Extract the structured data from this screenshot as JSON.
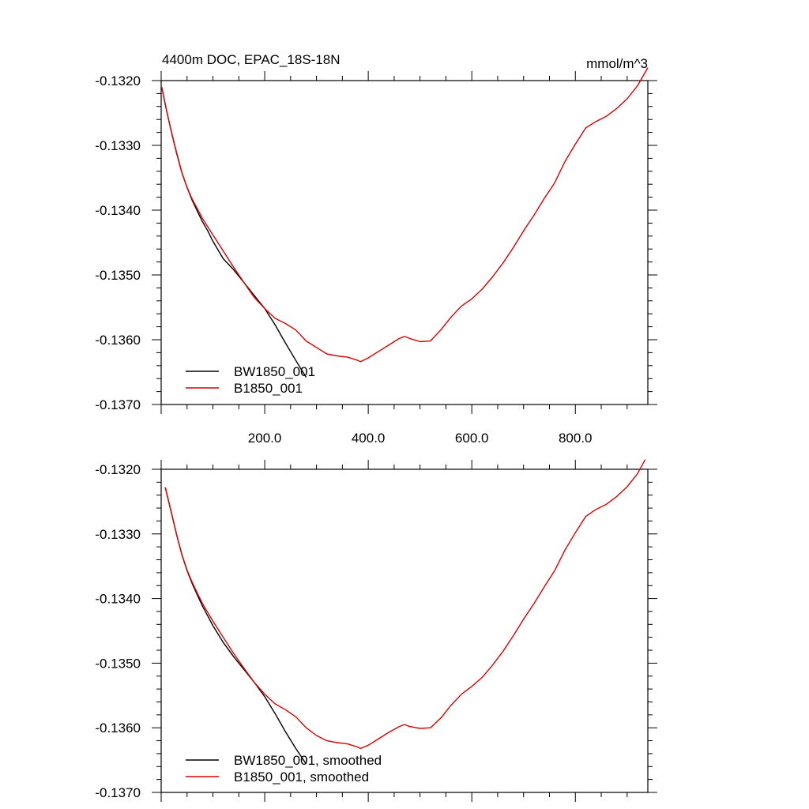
{
  "chart_data": [
    {
      "type": "line",
      "title": "4400m DOC, EPAC_18S-18N",
      "units": "mmol/m^3",
      "xlim": [
        0,
        940
      ],
      "ylim": [
        -0.137,
        -0.132
      ],
      "xticks": [
        200,
        400,
        600,
        800
      ],
      "xtick_labels": [
        "200.0",
        "400.0",
        "600.0",
        "800.0"
      ],
      "yticks": [
        -0.132,
        -0.133,
        -0.134,
        -0.135,
        -0.136,
        -0.137
      ],
      "ytick_labels": [
        "-0.1320",
        "-0.1330",
        "-0.1340",
        "-0.1350",
        "-0.1360",
        "-0.1370"
      ],
      "grid": false,
      "legend_position": "bottom-left",
      "series": [
        {
          "name": "BW1850_001",
          "color": "#000000",
          "x": [
            1,
            10,
            20,
            30,
            40,
            50,
            60,
            70,
            80,
            90,
            100,
            120,
            140,
            160,
            180,
            200,
            220,
            240,
            260,
            280
          ],
          "y": [
            -0.1321,
            -0.13245,
            -0.1328,
            -0.13313,
            -0.13342,
            -0.13365,
            -0.13385,
            -0.13402,
            -0.13418,
            -0.13432,
            -0.13448,
            -0.13475,
            -0.13492,
            -0.13512,
            -0.13532,
            -0.13552,
            -0.13577,
            -0.13605,
            -0.13632,
            -0.13658
          ]
        },
        {
          "name": "B1850_001",
          "color": "#e00000",
          "x": [
            1,
            10,
            20,
            30,
            40,
            50,
            60,
            70,
            80,
            100,
            120,
            140,
            160,
            180,
            200,
            220,
            240,
            260,
            280,
            300,
            320,
            340,
            360,
            380,
            385,
            400,
            420,
            440,
            460,
            470,
            480,
            500,
            520,
            540,
            560,
            580,
            600,
            620,
            640,
            660,
            680,
            700,
            720,
            740,
            760,
            780,
            800,
            820,
            840,
            860,
            880,
            900,
            920,
            940
          ],
          "y": [
            -0.1321,
            -0.13245,
            -0.1328,
            -0.13312,
            -0.13342,
            -0.13365,
            -0.13383,
            -0.13398,
            -0.13413,
            -0.13438,
            -0.13463,
            -0.13488,
            -0.13512,
            -0.13535,
            -0.13552,
            -0.13567,
            -0.13575,
            -0.13585,
            -0.13602,
            -0.13612,
            -0.13622,
            -0.13625,
            -0.13627,
            -0.13632,
            -0.13634,
            -0.13628,
            -0.13618,
            -0.13608,
            -0.13598,
            -0.13595,
            -0.13598,
            -0.13603,
            -0.13602,
            -0.13585,
            -0.13565,
            -0.13548,
            -0.13537,
            -0.13522,
            -0.13503,
            -0.13482,
            -0.13458,
            -0.13432,
            -0.13408,
            -0.13382,
            -0.13358,
            -0.13325,
            -0.13298,
            -0.13273,
            -0.13263,
            -0.13255,
            -0.13243,
            -0.13228,
            -0.13208,
            -0.1318
          ]
        }
      ]
    },
    {
      "type": "line",
      "xlim": [
        0,
        940
      ],
      "ylim": [
        -0.137,
        -0.132
      ],
      "yticks": [
        -0.132,
        -0.133,
        -0.134,
        -0.135,
        -0.136,
        -0.137
      ],
      "ytick_labels": [
        "-0.1320",
        "-0.1330",
        "-0.1340",
        "-0.1350",
        "-0.1360",
        "-0.1370"
      ],
      "grid": false,
      "legend_position": "bottom-left",
      "series": [
        {
          "name": "BW1850_001, smoothed",
          "color": "#000000",
          "x": [
            8,
            20,
            30,
            40,
            50,
            60,
            70,
            80,
            90,
            100,
            120,
            140,
            160,
            180,
            200,
            220,
            240,
            260,
            280
          ],
          "y": [
            -0.13228,
            -0.13268,
            -0.13302,
            -0.13332,
            -0.13357,
            -0.13377,
            -0.13395,
            -0.13412,
            -0.13427,
            -0.13442,
            -0.13468,
            -0.1349,
            -0.1351,
            -0.1353,
            -0.13552,
            -0.13578,
            -0.13606,
            -0.13632,
            -0.13656
          ]
        },
        {
          "name": "B1850_001, smoothed",
          "color": "#e00000",
          "x": [
            8,
            20,
            30,
            40,
            50,
            60,
            70,
            80,
            100,
            120,
            140,
            160,
            180,
            200,
            220,
            240,
            260,
            280,
            300,
            320,
            340,
            360,
            380,
            385,
            400,
            420,
            440,
            460,
            470,
            480,
            500,
            520,
            540,
            560,
            580,
            600,
            620,
            640,
            660,
            680,
            700,
            720,
            740,
            760,
            780,
            800,
            820,
            840,
            860,
            880,
            900,
            920,
            935
          ],
          "y": [
            -0.13228,
            -0.13268,
            -0.13302,
            -0.13332,
            -0.13356,
            -0.13375,
            -0.13392,
            -0.13408,
            -0.13435,
            -0.1346,
            -0.13485,
            -0.13508,
            -0.1353,
            -0.13548,
            -0.13563,
            -0.13572,
            -0.13583,
            -0.136,
            -0.13612,
            -0.1362,
            -0.13623,
            -0.13625,
            -0.1363,
            -0.13632,
            -0.13627,
            -0.13617,
            -0.13607,
            -0.13598,
            -0.13595,
            -0.13598,
            -0.13601,
            -0.136,
            -0.13585,
            -0.13565,
            -0.13548,
            -0.13536,
            -0.13522,
            -0.13503,
            -0.13482,
            -0.13458,
            -0.13432,
            -0.13408,
            -0.13382,
            -0.13357,
            -0.13325,
            -0.13298,
            -0.13273,
            -0.13262,
            -0.13254,
            -0.13242,
            -0.13227,
            -0.13207,
            -0.13185
          ]
        }
      ]
    }
  ]
}
